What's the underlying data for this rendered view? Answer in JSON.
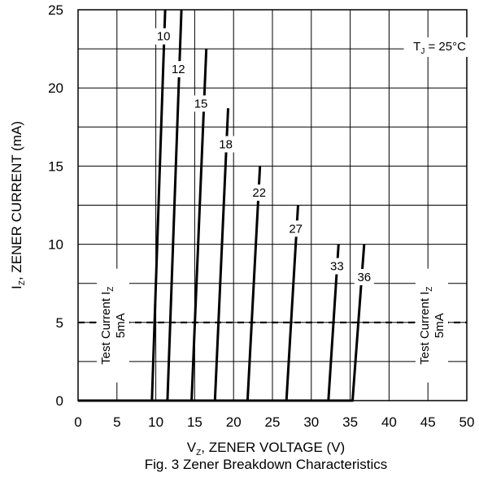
{
  "chart_data": {
    "type": "line",
    "title": "Fig. 3 Zener Breakdown Characteristics",
    "xlabel": {
      "pre": "V",
      "sub": "Z",
      "post": ", ZENER VOLTAGE (V)"
    },
    "ylabel": {
      "pre": "I",
      "sub": "Z",
      "post": ", ZENER CURRENT (mA)"
    },
    "xlim": [
      0,
      50
    ],
    "ylim": [
      0,
      25
    ],
    "xticks": [
      "0",
      "5",
      "10",
      "15",
      "20",
      "25",
      "30",
      "35",
      "40",
      "45",
      "50"
    ],
    "yticks": [
      "0",
      "5",
      "10",
      "15",
      "20",
      "25"
    ],
    "grid": true,
    "annotation_temp": {
      "pre": "T",
      "sub": "J",
      "post": " = 25°C"
    },
    "test_current": {
      "value": 5,
      "line1_pre": "Test Current I",
      "line1_sub": "Z",
      "line2": "5mA"
    },
    "series": [
      {
        "name": "10",
        "points": [
          [
            0,
            0
          ],
          [
            9.5,
            0
          ],
          [
            11.2,
            25
          ]
        ]
      },
      {
        "name": "12",
        "points": [
          [
            0,
            0
          ],
          [
            11.5,
            0
          ],
          [
            13.3,
            25
          ]
        ]
      },
      {
        "name": "15",
        "points": [
          [
            0,
            0
          ],
          [
            14.6,
            0
          ],
          [
            16.5,
            22.5
          ]
        ]
      },
      {
        "name": "18",
        "points": [
          [
            0,
            0
          ],
          [
            17.6,
            0
          ],
          [
            19.3,
            18.7
          ]
        ]
      },
      {
        "name": "22",
        "points": [
          [
            0,
            0
          ],
          [
            21.8,
            0
          ],
          [
            23.4,
            15
          ]
        ]
      },
      {
        "name": "27",
        "points": [
          [
            0,
            0
          ],
          [
            26.8,
            0
          ],
          [
            28.3,
            12.5
          ]
        ]
      },
      {
        "name": "33",
        "points": [
          [
            0,
            0
          ],
          [
            32.2,
            0
          ],
          [
            33.5,
            10
          ]
        ]
      },
      {
        "name": "36",
        "points": [
          [
            0,
            0
          ],
          [
            35.3,
            0
          ],
          [
            36.8,
            10
          ]
        ]
      }
    ],
    "series_labels": [
      {
        "name": "10",
        "x": 11.0,
        "y": 23.3
      },
      {
        "name": "12",
        "x": 12.9,
        "y": 21.2
      },
      {
        "name": "15",
        "x": 15.8,
        "y": 19.0
      },
      {
        "name": "18",
        "x": 19.0,
        "y": 16.4
      },
      {
        "name": "22",
        "x": 23.3,
        "y": 13.3
      },
      {
        "name": "27",
        "x": 28.0,
        "y": 11.0
      },
      {
        "name": "33",
        "x": 33.3,
        "y": 8.6
      },
      {
        "name": "36",
        "x": 36.8,
        "y": 7.9
      }
    ]
  }
}
